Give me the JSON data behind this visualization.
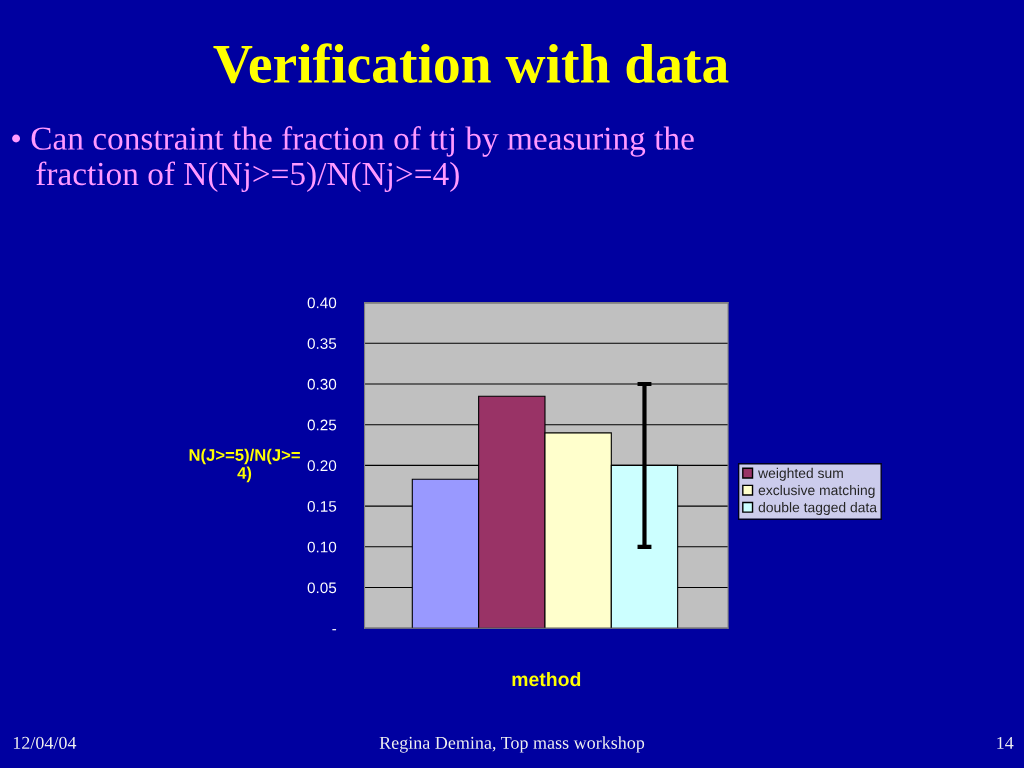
{
  "chart_data": {
    "type": "bar",
    "title": "Verification with data",
    "subtitle": "• Can constraint the fraction of ttj by measuring the\n   fraction of N(Nj>=5)/N(Nj>=4)",
    "xlabel": "method",
    "ylabel": "N(J>=5)/N(J>=\n4)",
    "categories": [
      null
    ],
    "series": [
      {
        "color": "#9999ff",
        "values": [
          0.183
        ]
      },
      {
        "name": "weighted sum",
        "color": "#993366",
        "values": [
          0.285
        ]
      },
      {
        "name": "exclusive matching",
        "color": "#ffffcc",
        "values": [
          0.24
        ]
      },
      {
        "name": "double tagged data",
        "color": "#ccffff",
        "values": [
          0.2
        ],
        "errors": [
          0.1
        ]
      }
    ],
    "ylim": [
      0,
      0.4
    ],
    "yticks": [
      {
        "value": 0,
        "label": "-"
      },
      {
        "value": 0.05,
        "label": "0.05"
      },
      {
        "value": 0.1,
        "label": "0.10"
      },
      {
        "value": 0.15,
        "label": "0.15"
      },
      {
        "value": 0.2,
        "label": "0.20"
      },
      {
        "value": 0.25,
        "label": "0.25"
      },
      {
        "value": 0.3,
        "label": "0.30"
      },
      {
        "value": 0.35,
        "label": "0.35"
      },
      {
        "value": 0.4,
        "label": "0.40"
      }
    ],
    "grid": "y",
    "legend": "right",
    "annotations": [
      "12/04/04",
      "Regina Demina, Top mass workshop",
      "14"
    ]
  }
}
